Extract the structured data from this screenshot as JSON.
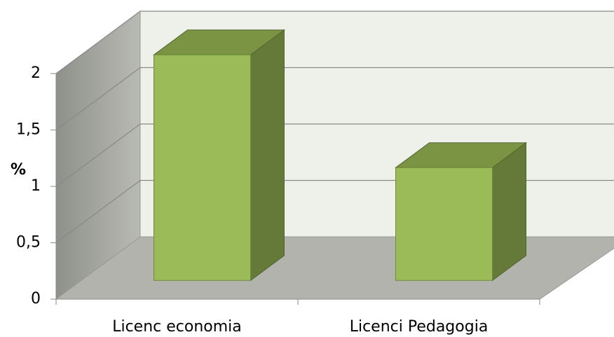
{
  "chart_data": {
    "type": "bar3d",
    "y_label": "%",
    "categories": [
      "Licenc economia",
      "Licenci Pedagogia"
    ],
    "values": [
      2,
      1
    ],
    "color": "#9bbb59",
    "ylim": [
      0,
      2
    ],
    "yticks": [
      0,
      {
        "value": 0.5,
        "label": "0,5"
      },
      1,
      {
        "value": 1.5,
        "label": "1,5"
      },
      2
    ],
    "grid": true
  }
}
